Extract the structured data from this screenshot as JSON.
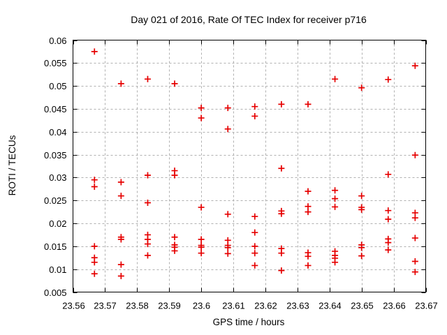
{
  "chart_data": {
    "type": "scatter",
    "title": "Day 021 of 2016, Rate Of TEC Index for receiver p716",
    "xlabel": "GPS time / hours",
    "ylabel": "ROTI / TECUs",
    "xlim": [
      23.56,
      23.67
    ],
    "ylim": [
      0.005,
      0.06
    ],
    "xtick_values": [
      23.56,
      23.57,
      23.58,
      23.59,
      23.6,
      23.61,
      23.62,
      23.63,
      23.64,
      23.65,
      23.66,
      23.67
    ],
    "xtick_labels": [
      "23.56",
      "23.57",
      "23.58",
      "23.59",
      "23.6",
      "23.61",
      "23.62",
      "23.63",
      "23.64",
      "23.65",
      "23.66",
      "23.67"
    ],
    "ytick_values": [
      0.005,
      0.01,
      0.015,
      0.02,
      0.025,
      0.03,
      0.035,
      0.04,
      0.045,
      0.05,
      0.055,
      0.06
    ],
    "ytick_labels": [
      "0.005",
      "0.01",
      "0.015",
      "0.02",
      "0.025",
      "0.03",
      "0.035",
      "0.04",
      "0.045",
      "0.05",
      "0.055",
      "0.06"
    ],
    "grid": true,
    "grid_style": "dashed",
    "grid_color": "#b0b0b0",
    "border_color": "#000000",
    "marker": "plus",
    "marker_color": "#e60000",
    "legend": "none",
    "series": [
      {
        "name": "ROTI",
        "points": [
          [
            23.5667,
            0.0575
          ],
          [
            23.5667,
            0.0295
          ],
          [
            23.5667,
            0.028
          ],
          [
            23.5667,
            0.015
          ],
          [
            23.5667,
            0.0125
          ],
          [
            23.5667,
            0.0115
          ],
          [
            23.5667,
            0.009
          ],
          [
            23.575,
            0.0505
          ],
          [
            23.575,
            0.029
          ],
          [
            23.575,
            0.026
          ],
          [
            23.575,
            0.017
          ],
          [
            23.575,
            0.0165
          ],
          [
            23.575,
            0.011
          ],
          [
            23.575,
            0.0085
          ],
          [
            23.5833,
            0.0515
          ],
          [
            23.5833,
            0.0305
          ],
          [
            23.5833,
            0.0245
          ],
          [
            23.5833,
            0.0175
          ],
          [
            23.5833,
            0.0165
          ],
          [
            23.5833,
            0.0155
          ],
          [
            23.5833,
            0.013
          ],
          [
            23.5917,
            0.0505
          ],
          [
            23.5917,
            0.0315
          ],
          [
            23.5917,
            0.0305
          ],
          [
            23.5917,
            0.017
          ],
          [
            23.5917,
            0.0153
          ],
          [
            23.5917,
            0.0148
          ],
          [
            23.5917,
            0.014
          ],
          [
            23.6,
            0.0452
          ],
          [
            23.6,
            0.043
          ],
          [
            23.6,
            0.0235
          ],
          [
            23.6,
            0.0165
          ],
          [
            23.6,
            0.0152
          ],
          [
            23.6,
            0.0148
          ],
          [
            23.6,
            0.0135
          ],
          [
            23.6083,
            0.0452
          ],
          [
            23.6083,
            0.0406
          ],
          [
            23.6083,
            0.022
          ],
          [
            23.6083,
            0.0163
          ],
          [
            23.6083,
            0.0152
          ],
          [
            23.6083,
            0.0147
          ],
          [
            23.6083,
            0.0134
          ],
          [
            23.6167,
            0.0455
          ],
          [
            23.6167,
            0.0434
          ],
          [
            23.6167,
            0.0215
          ],
          [
            23.6167,
            0.018
          ],
          [
            23.6167,
            0.015
          ],
          [
            23.6167,
            0.0135
          ],
          [
            23.6167,
            0.0108
          ],
          [
            23.625,
            0.046
          ],
          [
            23.625,
            0.032
          ],
          [
            23.625,
            0.0227
          ],
          [
            23.625,
            0.0221
          ],
          [
            23.625,
            0.0145
          ],
          [
            23.625,
            0.0135
          ],
          [
            23.625,
            0.0097
          ],
          [
            23.6333,
            0.046
          ],
          [
            23.6333,
            0.027
          ],
          [
            23.6333,
            0.0237
          ],
          [
            23.6333,
            0.0225
          ],
          [
            23.6333,
            0.0136
          ],
          [
            23.6333,
            0.0128
          ],
          [
            23.6333,
            0.0108
          ],
          [
            23.6417,
            0.0515
          ],
          [
            23.6417,
            0.0272
          ],
          [
            23.6417,
            0.0254
          ],
          [
            23.6417,
            0.0236
          ],
          [
            23.6417,
            0.0139
          ],
          [
            23.6417,
            0.013
          ],
          [
            23.6417,
            0.0124
          ],
          [
            23.6417,
            0.0115
          ],
          [
            23.65,
            0.0496
          ],
          [
            23.65,
            0.026
          ],
          [
            23.65,
            0.0235
          ],
          [
            23.65,
            0.023
          ],
          [
            23.65,
            0.0153
          ],
          [
            23.65,
            0.0147
          ],
          [
            23.65,
            0.0129
          ],
          [
            23.6583,
            0.0514
          ],
          [
            23.6583,
            0.0307
          ],
          [
            23.6583,
            0.0228
          ],
          [
            23.6583,
            0.0209
          ],
          [
            23.6583,
            0.0166
          ],
          [
            23.6583,
            0.0158
          ],
          [
            23.6583,
            0.0142
          ],
          [
            23.6667,
            0.0544
          ],
          [
            23.6667,
            0.0349
          ],
          [
            23.6667,
            0.0223
          ],
          [
            23.6667,
            0.0212
          ],
          [
            23.6667,
            0.0168
          ],
          [
            23.6667,
            0.0117
          ],
          [
            23.6667,
            0.0094
          ]
        ]
      }
    ]
  }
}
